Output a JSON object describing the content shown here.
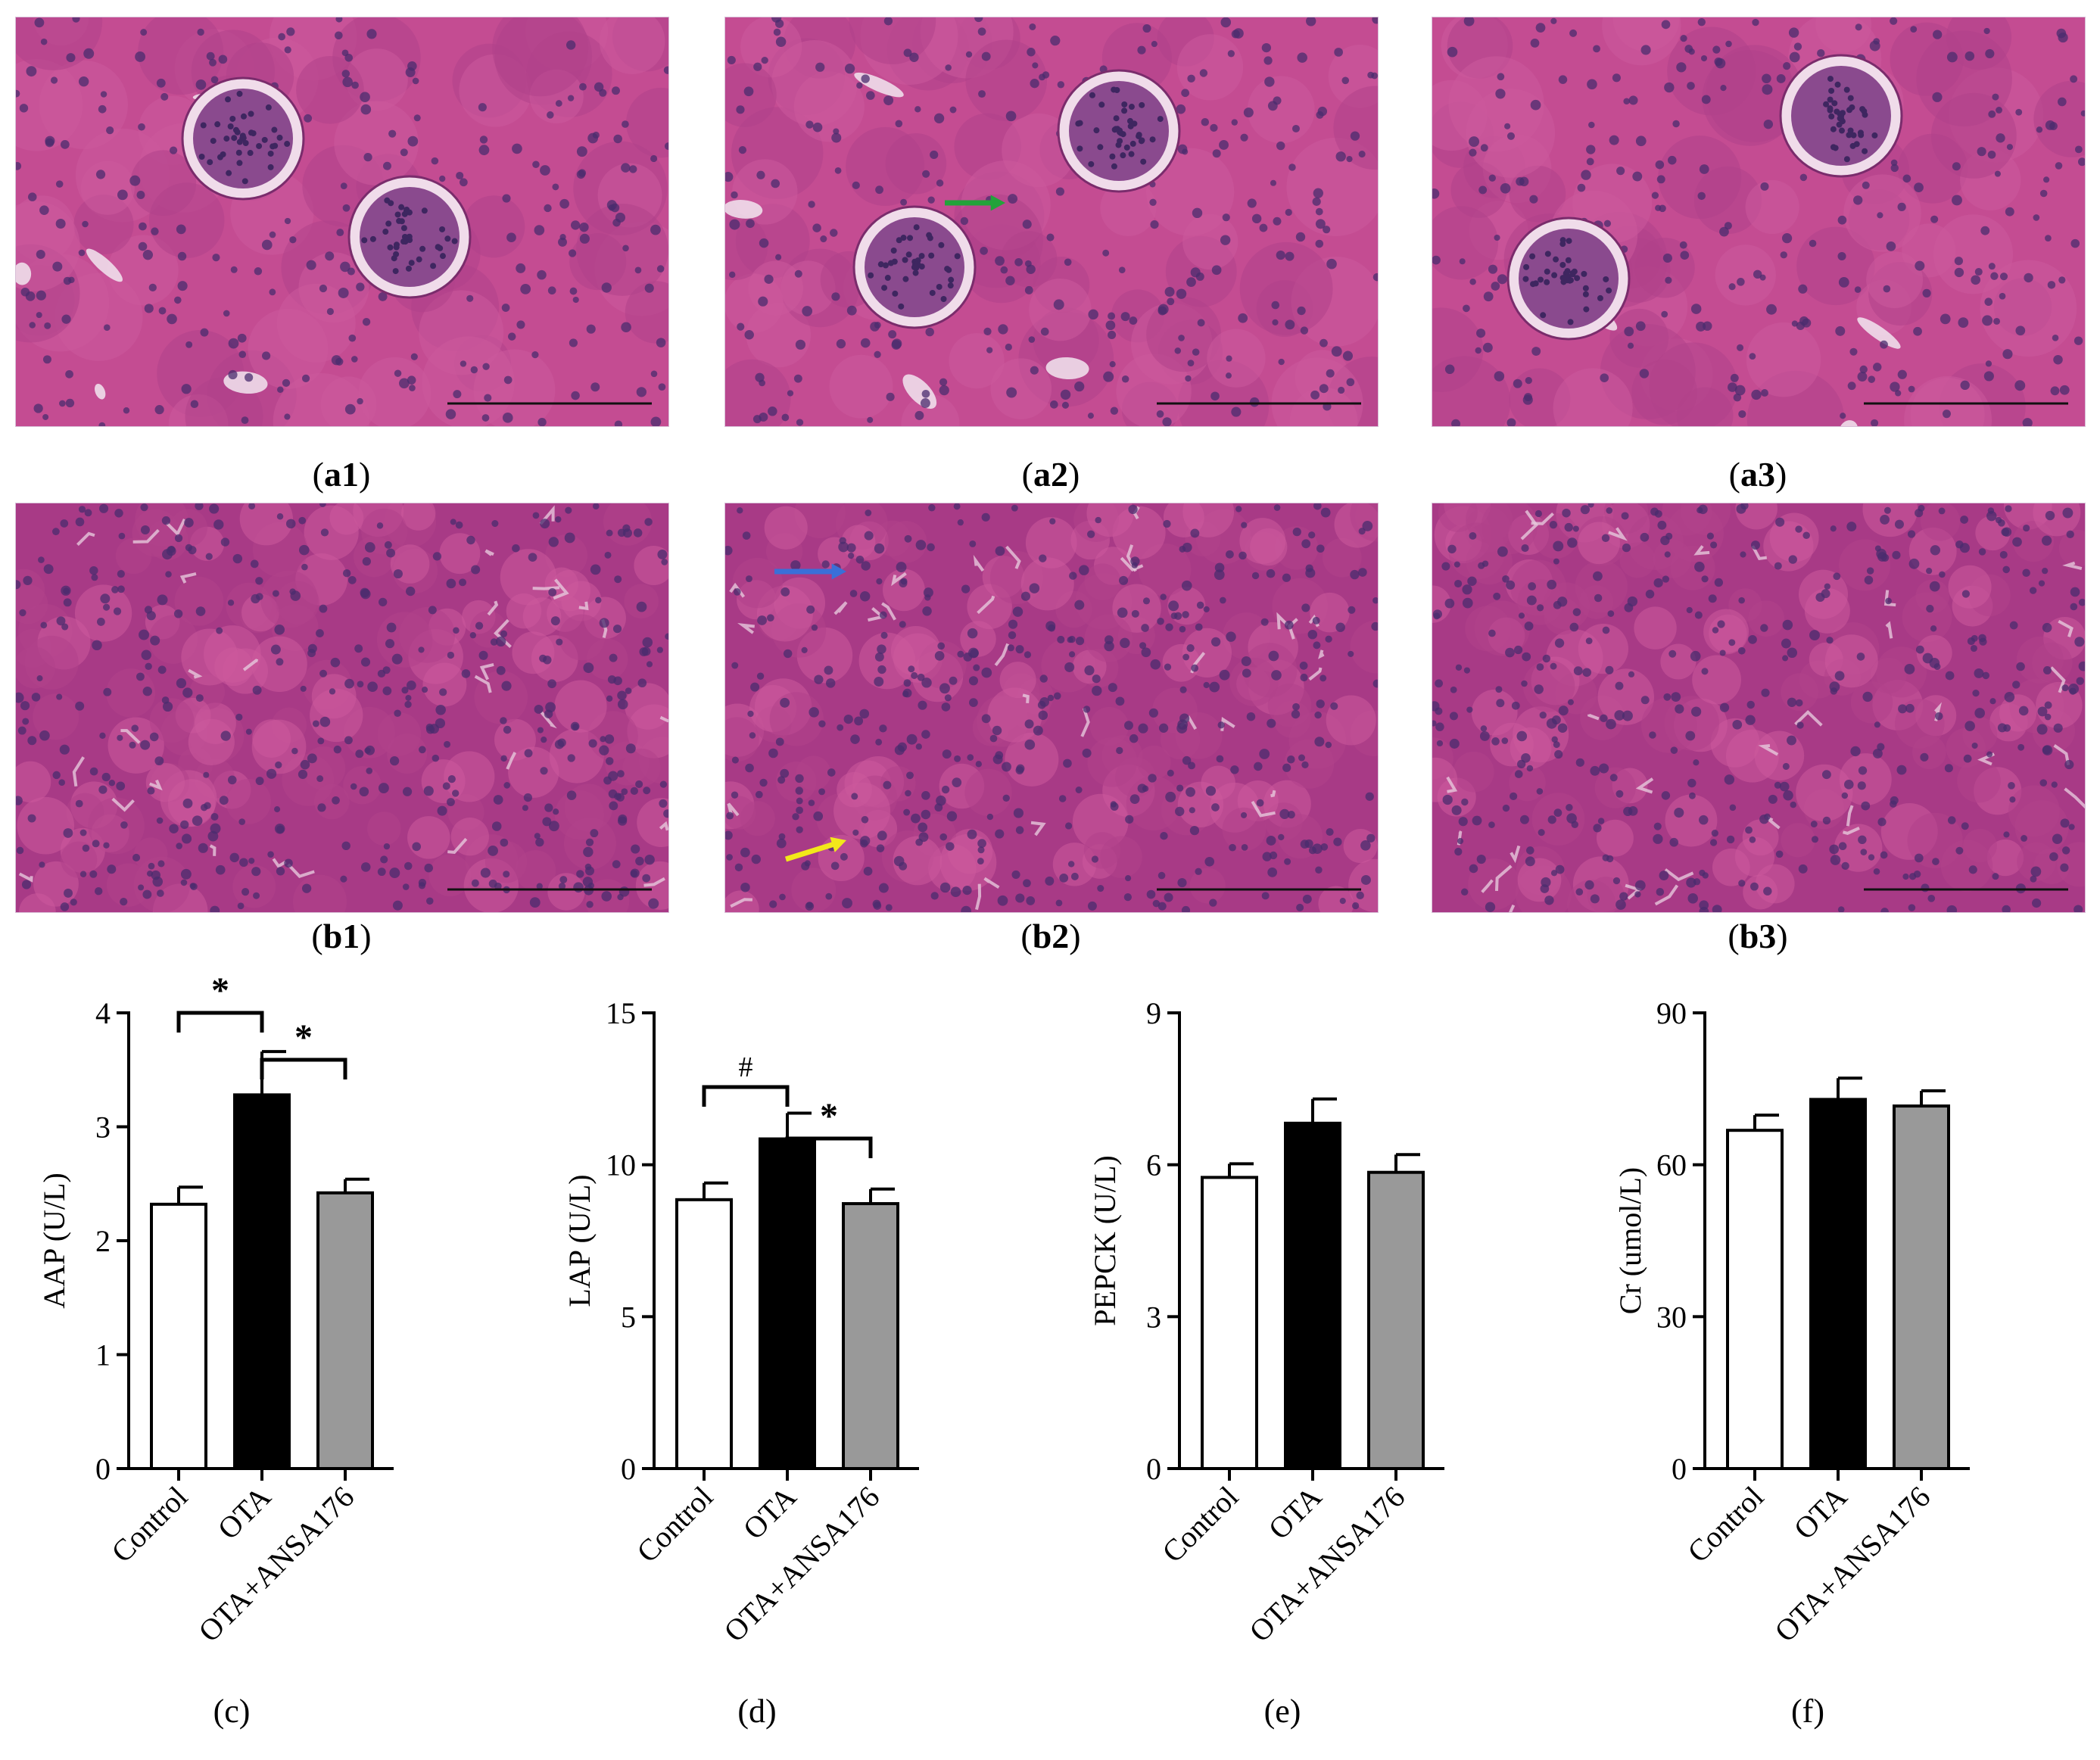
{
  "colors": {
    "tissue_base": "#c2488f",
    "tissue_dark": "#8a2f7a",
    "nuclei": "#4a2c6e",
    "lumen": "#f2e6f0",
    "arrow_green": "#22a33a",
    "arrow_blue": "#3a6fd8",
    "arrow_yellow": "#f2e81a",
    "bar_control": "#ffffff",
    "bar_ota": "#000000",
    "bar_ota_ansa": "#999999"
  },
  "panels": [
    {
      "id": "a1",
      "label_letter": "a",
      "label_num": "1",
      "open": "(",
      "close": ")"
    },
    {
      "id": "a2",
      "label_letter": "a",
      "label_num": "2",
      "open": "(",
      "close": ")"
    },
    {
      "id": "a3",
      "label_letter": "a",
      "label_num": "3",
      "open": "(",
      "close": ")"
    },
    {
      "id": "b1",
      "label_letter": "b",
      "label_num": "1",
      "open": "(",
      "close": ")"
    },
    {
      "id": "b2",
      "label_letter": "b",
      "label_num": "2",
      "open": "(",
      "close": ")"
    },
    {
      "id": "b3",
      "label_letter": "b",
      "label_num": "3",
      "open": "(",
      "close": ")"
    }
  ],
  "chart_data": [
    {
      "type": "bar",
      "panel_label": "(c)",
      "categories": [
        "Control",
        "OTA",
        "OTA+ANSA176"
      ],
      "values": [
        2.32,
        3.28,
        2.42
      ],
      "errors": [
        0.15,
        0.38,
        0.12
      ],
      "ylabel": "AAP (U/L)",
      "ylim": [
        0,
        4
      ],
      "yticks": [
        0,
        1,
        2,
        3,
        4
      ],
      "significance": [
        {
          "from": 0,
          "to": 1,
          "symbol": "*"
        },
        {
          "from": 1,
          "to": 2,
          "symbol": "*"
        }
      ]
    },
    {
      "type": "bar",
      "panel_label": "(d)",
      "categories": [
        "Control",
        "OTA",
        "OTA+ANSA176"
      ],
      "values": [
        8.85,
        10.85,
        8.72
      ],
      "errors": [
        0.55,
        0.85,
        0.48
      ],
      "ylabel": "LAP (U/L)",
      "ylim": [
        0,
        15
      ],
      "yticks": [
        0,
        5,
        10,
        15
      ],
      "significance": [
        {
          "from": 0,
          "to": 1,
          "symbol": "#"
        },
        {
          "from": 1,
          "to": 2,
          "symbol": "*"
        }
      ]
    },
    {
      "type": "bar",
      "panel_label": "(e)",
      "categories": [
        "Control",
        "OTA",
        "OTA+ANSA176"
      ],
      "values": [
        5.75,
        6.82,
        5.85
      ],
      "errors": [
        0.27,
        0.48,
        0.35
      ],
      "ylabel": "PEPCK (U/L)",
      "ylim": [
        0,
        9
      ],
      "yticks": [
        0,
        3,
        6,
        9
      ],
      "significance": []
    },
    {
      "type": "bar",
      "panel_label": "(f)",
      "categories": [
        "Control",
        "OTA",
        "OTA+ANSA176"
      ],
      "values": [
        66.8,
        72.9,
        71.6
      ],
      "errors": [
        3.0,
        4.2,
        3.0
      ],
      "ylabel": "Cr (umol/L)",
      "ylim": [
        0,
        90
      ],
      "yticks": [
        0,
        30,
        60,
        90
      ],
      "significance": []
    }
  ]
}
